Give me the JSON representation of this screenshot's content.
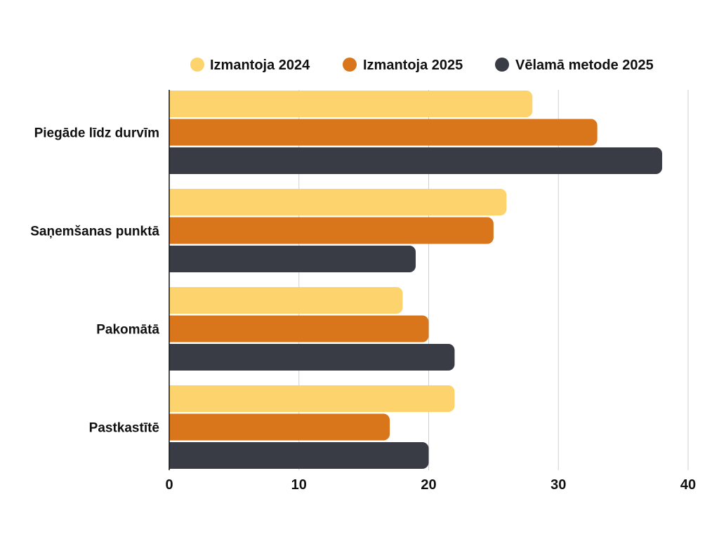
{
  "chart_data": {
    "type": "bar",
    "orientation": "horizontal",
    "title": "",
    "xlabel": "",
    "ylabel": "",
    "xlim": [
      0,
      40
    ],
    "x_ticks": [
      "0",
      "10",
      "20",
      "30",
      "40"
    ],
    "grid": true,
    "legend_position": "top",
    "categories": [
      "Piegāde līdz durvīm",
      "Saņemšanas punktā",
      "Pakomātā",
      "Pastkastītē"
    ],
    "series": [
      {
        "name": "Izmantoja 2024",
        "color": "#FDD36E",
        "values": [
          28,
          26,
          18,
          22
        ]
      },
      {
        "name": "Izmantoja 2025",
        "color": "#D9761C",
        "values": [
          33,
          25,
          20,
          17
        ]
      },
      {
        "name": "Vēlamā metode 2025",
        "color": "#393C45",
        "values": [
          38,
          19,
          22,
          20
        ]
      }
    ]
  }
}
